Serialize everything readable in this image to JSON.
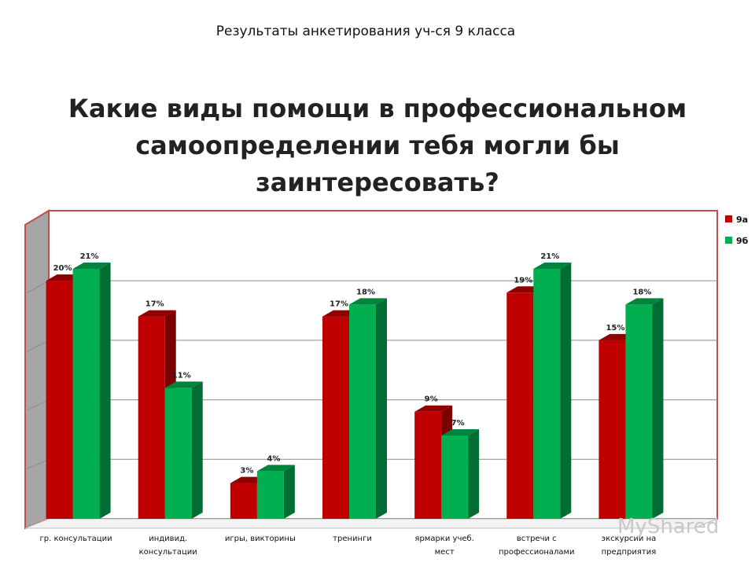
{
  "header": {
    "subtitle": "Результаты анкетирования уч-ся 9 класса",
    "title": "Какие виды помощи в профессиональном самоопределении тебя могли бы заинтересовать?"
  },
  "chart_data": {
    "type": "bar",
    "categories": [
      [
        "гр. консультации"
      ],
      [
        "индивид.",
        "консультации"
      ],
      [
        "игры, викторины"
      ],
      [
        "тренинги"
      ],
      [
        "ярмарки учеб.",
        "мест"
      ],
      [
        "встречи с",
        "профессионалами"
      ],
      [
        "экскурсии на",
        "предприятия"
      ]
    ],
    "series": [
      {
        "name": "9а",
        "values": [
          20,
          17,
          3,
          17,
          9,
          19,
          15
        ],
        "labels": [
          "20%",
          "17%",
          "3%",
          "17%",
          "9%",
          "19%",
          "15%"
        ],
        "color": "#C00000",
        "side_color": "#7a0000",
        "top_color": "#8f0000"
      },
      {
        "name": "9б",
        "values": [
          21,
          11,
          4,
          18,
          7,
          21,
          18
        ],
        "labels": [
          "21%",
          "11%",
          "4%",
          "18%",
          "7%",
          "21%",
          "18%"
        ],
        "color": "#00B050",
        "side_color": "#006d32",
        "top_color": "#00843d"
      }
    ],
    "ylim": [
      0,
      25
    ],
    "grid": true,
    "legend": "right",
    "three_d": true
  },
  "watermark": "MyShared"
}
